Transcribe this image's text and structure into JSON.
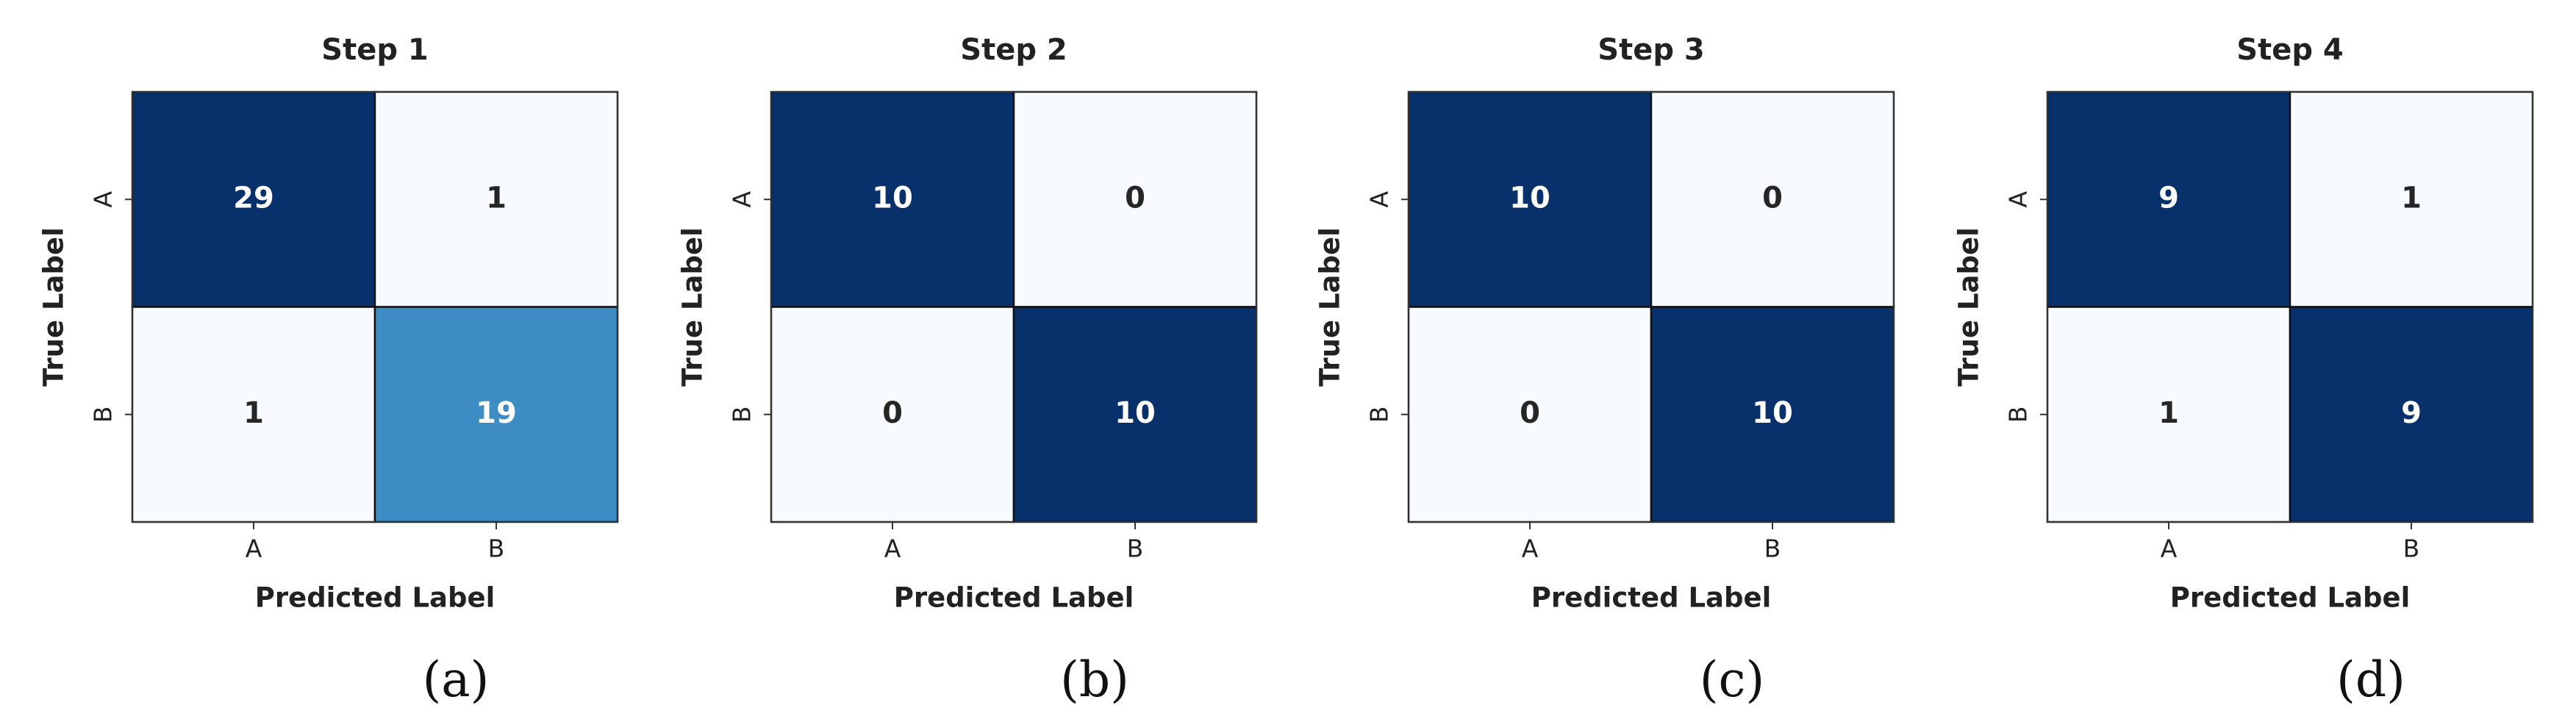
{
  "chart_data": [
    {
      "type": "heatmap",
      "title": "Step 1",
      "caption": "(a)",
      "x_label": "Predicted Label",
      "y_label": "True Label",
      "x_categories": [
        "A",
        "B"
      ],
      "y_categories": [
        "A",
        "B"
      ],
      "values": [
        [
          29,
          1
        ],
        [
          1,
          19
        ]
      ],
      "colormap": "Blues"
    },
    {
      "type": "heatmap",
      "title": "Step 2",
      "caption": "(b)",
      "x_label": "Predicted Label",
      "y_label": "True Label",
      "x_categories": [
        "A",
        "B"
      ],
      "y_categories": [
        "A",
        "B"
      ],
      "values": [
        [
          10,
          0
        ],
        [
          0,
          10
        ]
      ],
      "colormap": "Blues"
    },
    {
      "type": "heatmap",
      "title": "Step 3",
      "caption": "(c)",
      "x_label": "Predicted Label",
      "y_label": "True Label",
      "x_categories": [
        "A",
        "B"
      ],
      "y_categories": [
        "A",
        "B"
      ],
      "values": [
        [
          10,
          0
        ],
        [
          0,
          10
        ]
      ],
      "colormap": "Blues"
    },
    {
      "type": "heatmap",
      "title": "Step 4",
      "caption": "(d)",
      "x_label": "Predicted Label",
      "y_label": "True Label",
      "x_categories": [
        "A",
        "B"
      ],
      "y_categories": [
        "A",
        "B"
      ],
      "values": [
        [
          9,
          1
        ],
        [
          1,
          9
        ]
      ],
      "colormap": "Blues"
    }
  ]
}
